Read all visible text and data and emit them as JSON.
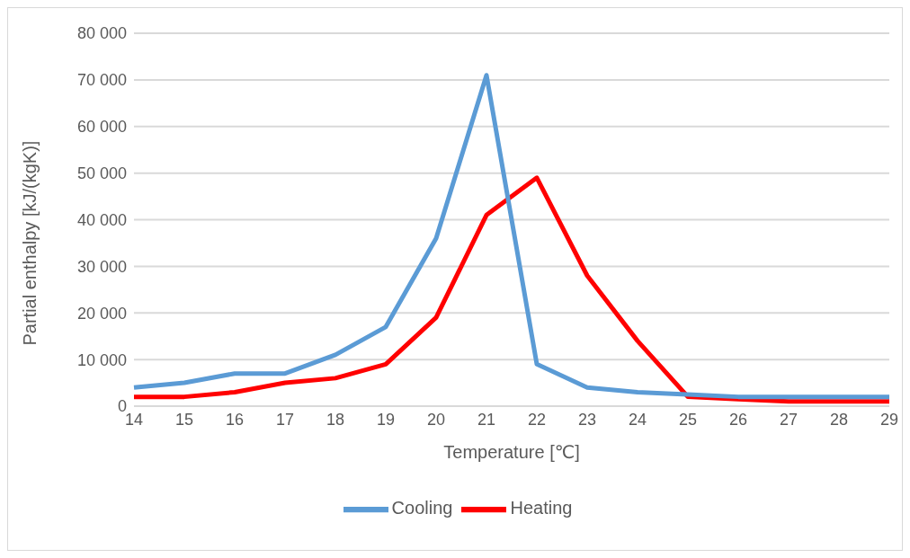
{
  "chart_data": {
    "type": "line",
    "xlabel": "Temperature [℃]",
    "ylabel": "Partial enthalpy [kJ/(kgK)]",
    "categories": [
      "14",
      "15",
      "16",
      "17",
      "18",
      "19",
      "20",
      "21",
      "22",
      "23",
      "24",
      "25",
      "26",
      "27",
      "28",
      "29"
    ],
    "series": [
      {
        "name": "Heating",
        "color": "#ff0000",
        "values": [
          2000,
          2000,
          3000,
          5000,
          6000,
          9000,
          19000,
          41000,
          49000,
          28000,
          14000,
          2000,
          1500,
          1000,
          1000,
          1000
        ]
      },
      {
        "name": "Cooling",
        "color": "#5b9bd5",
        "values": [
          4000,
          5000,
          7000,
          7000,
          11000,
          17000,
          36000,
          71000,
          9000,
          4000,
          3000,
          2500,
          2000,
          2000,
          2000,
          2000
        ]
      }
    ],
    "ylim": [
      0,
      80000
    ],
    "yticks": [
      {
        "value": 0,
        "label": "0"
      },
      {
        "value": 10000,
        "label": "10 000"
      },
      {
        "value": 20000,
        "label": "20 000"
      },
      {
        "value": 30000,
        "label": "30 000"
      },
      {
        "value": 40000,
        "label": "40 000"
      },
      {
        "value": 50000,
        "label": "50 000"
      },
      {
        "value": 60000,
        "label": "60 000"
      },
      {
        "value": 70000,
        "label": "70 000"
      },
      {
        "value": 80000,
        "label": "80 000"
      }
    ],
    "grid": "y",
    "legend": "bottom",
    "marker": "none",
    "line_style": "solid"
  }
}
